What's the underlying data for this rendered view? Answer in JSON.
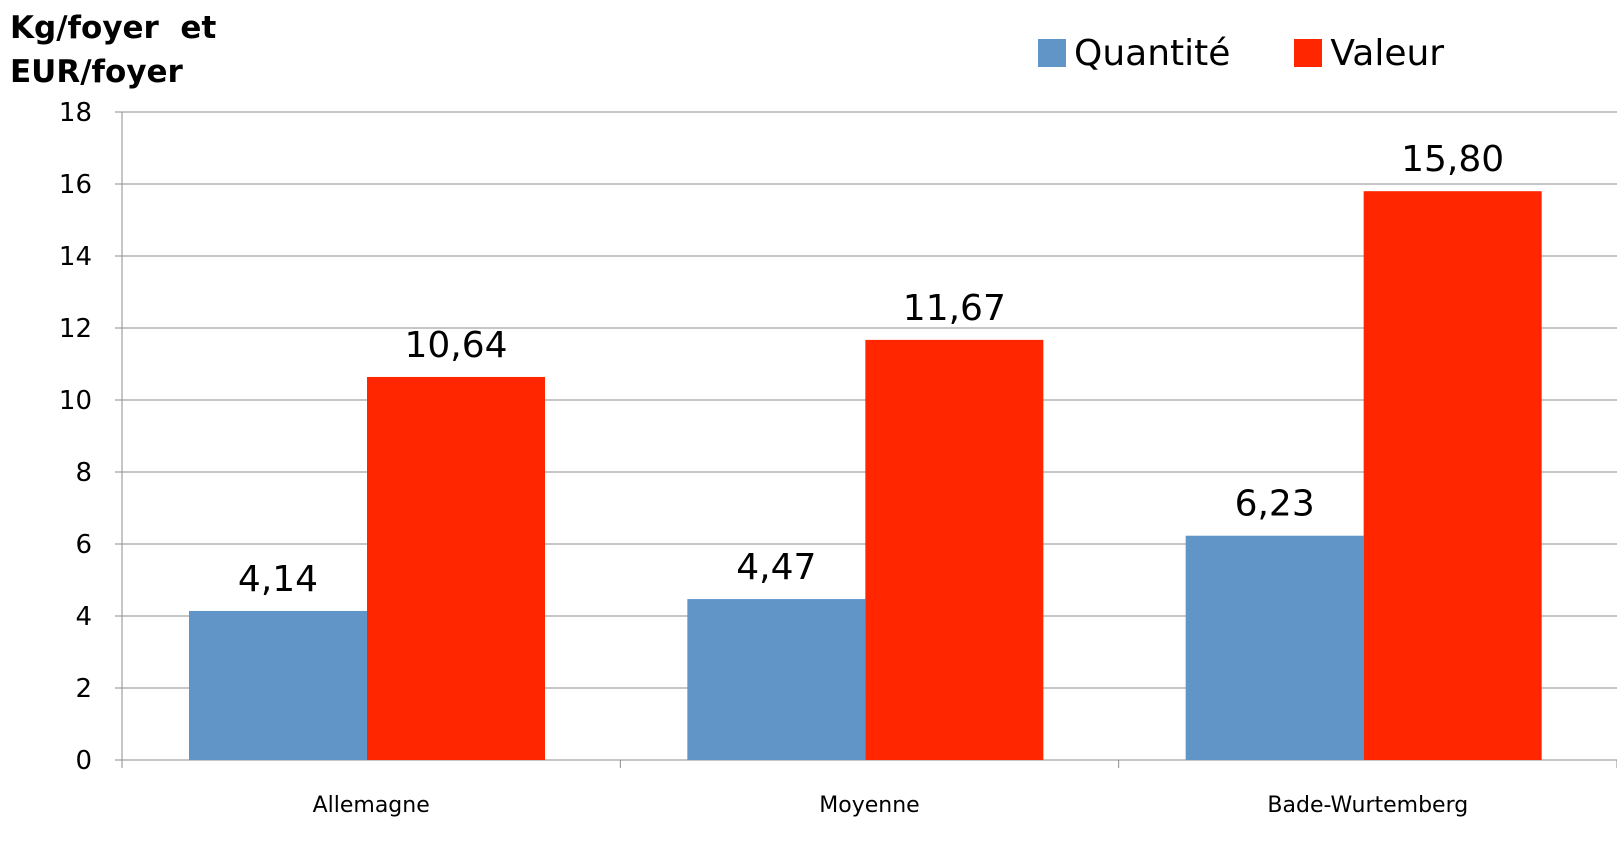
{
  "chart_data": {
    "type": "bar",
    "title": "",
    "ylabel": "Kg/foyer  et\nEUR/foyer",
    "xlabel": "",
    "categories": [
      "Allemagne",
      "Moyenne",
      "Bade-Wurtemberg"
    ],
    "series": [
      {
        "name": "Quantité",
        "color": "#6195C8",
        "values": [
          4.14,
          4.47,
          6.23
        ],
        "labels": [
          "4,14",
          "4,47",
          "6,23"
        ]
      },
      {
        "name": "Valeur",
        "color": "#FF2600",
        "values": [
          10.64,
          11.67,
          15.8
        ],
        "labels": [
          "10,64",
          "11,67",
          "15,80"
        ]
      }
    ],
    "ylim": [
      0,
      18
    ],
    "yticks": [
      0,
      2,
      4,
      6,
      8,
      10,
      12,
      14,
      16,
      18
    ],
    "grid": true,
    "legend_position": "top-right"
  }
}
